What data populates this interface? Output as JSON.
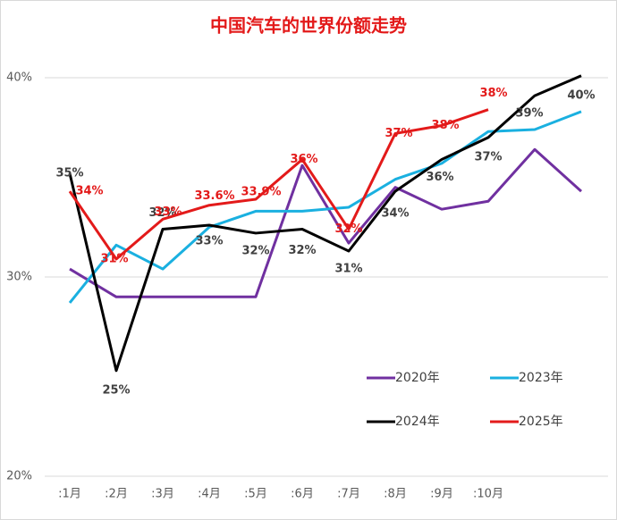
{
  "chart_data": {
    "type": "line",
    "title": "中国汽车的世界份额走势",
    "categories": [
      ":1月",
      ":2月",
      ":3月",
      ":4月",
      ":5月",
      ":6月",
      ":7月",
      ":8月",
      ":9月",
      ":10月",
      null,
      null
    ],
    "ylim": [
      20,
      40.2
    ],
    "yticks": [
      {
        "value": 20,
        "label": "20%"
      },
      {
        "value": 30,
        "label": "30%"
      },
      {
        "value": 40,
        "label": "40%"
      }
    ],
    "grid": true,
    "series": [
      {
        "name": "2020年",
        "color": "#7030a0",
        "values": [
          30.4,
          29.0,
          29.0,
          29.0,
          29.0,
          35.6,
          31.7,
          34.5,
          33.4,
          33.8,
          36.4,
          34.3
        ]
      },
      {
        "name": "2023年",
        "color": "#1ab0e0",
        "values": [
          28.7,
          31.6,
          30.4,
          32.5,
          33.3,
          33.3,
          33.5,
          34.9,
          35.7,
          37.3,
          37.4,
          38.3
        ]
      },
      {
        "name": "2024年",
        "color": "#000000",
        "values": [
          35.2,
          25.3,
          32.4,
          32.6,
          32.2,
          32.4,
          31.3,
          34.3,
          35.9,
          37.0,
          39.1,
          40.1
        ],
        "value_labels": [
          "35%",
          "25%",
          "32%",
          "33%",
          "32%",
          "32%",
          "31%",
          "34%",
          "36%",
          "37%",
          "39%",
          "40%"
        ]
      },
      {
        "name": "2025年",
        "color": "#e31a1a",
        "values": [
          34.3,
          30.9,
          32.9,
          33.6,
          33.9,
          35.9,
          32.4,
          37.2,
          37.6,
          38.4,
          null,
          null
        ],
        "value_labels": [
          "34%",
          "31%",
          "33%",
          "33.6%",
          "33.9%",
          "36%",
          "32%",
          "37%",
          "38%",
          "38%",
          null,
          null
        ]
      }
    ]
  }
}
